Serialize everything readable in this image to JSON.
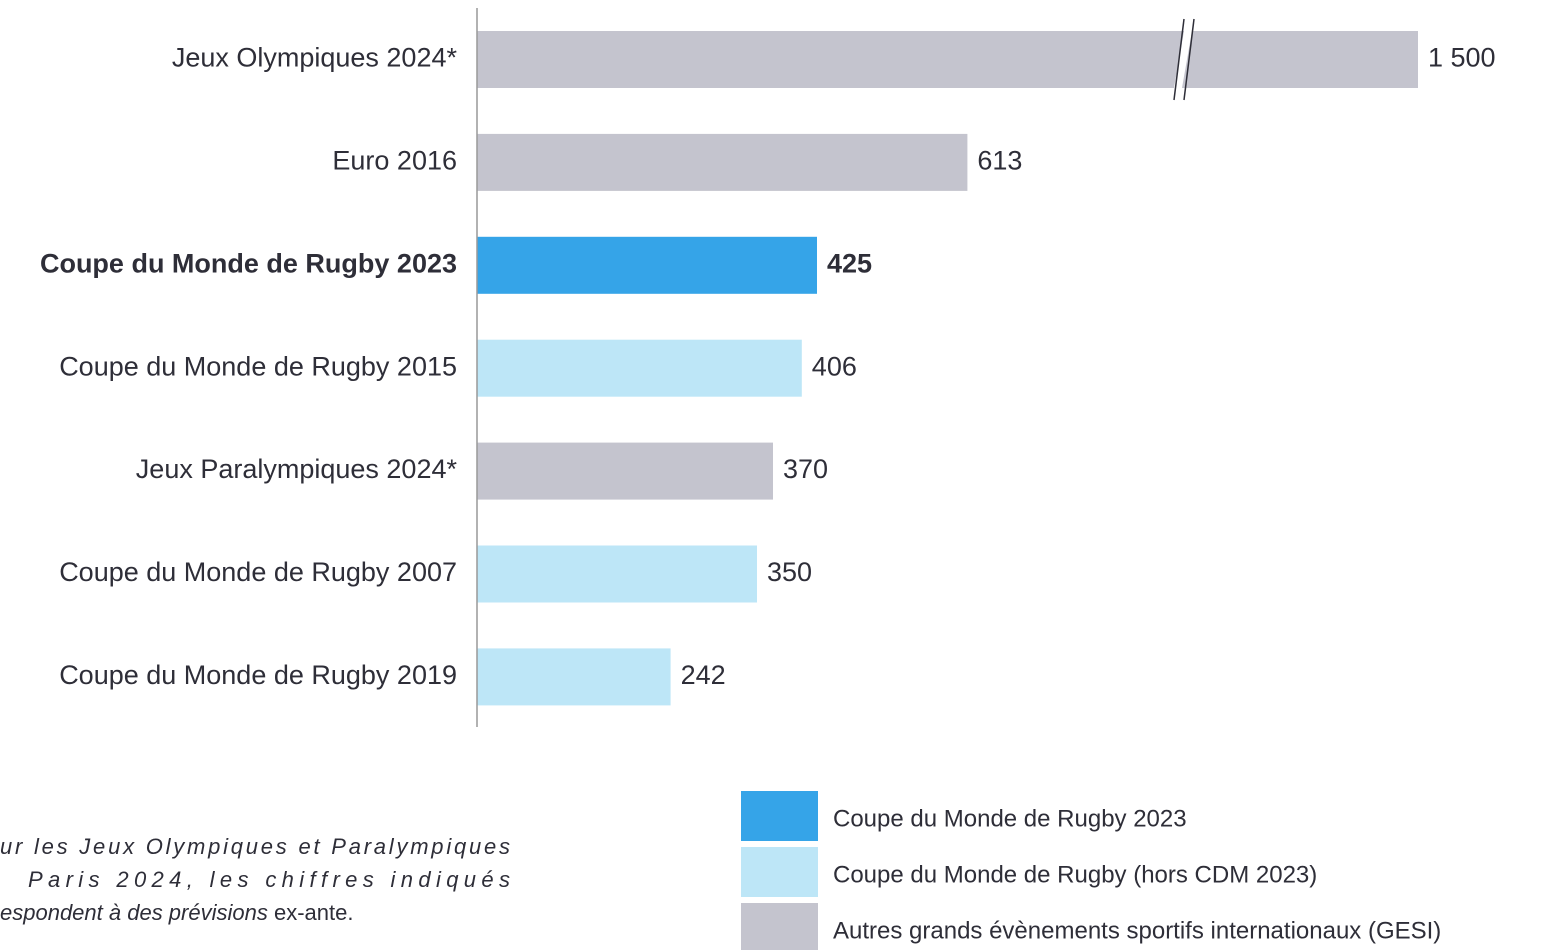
{
  "chart_data": {
    "type": "hbar",
    "categories": [
      "Jeux Olympiques 2024*",
      "Euro 2016",
      "Coupe du Monde de Rugby 2023",
      "Coupe du Monde de Rugby 2015",
      "Jeux Paralympiques 2024*",
      "Coupe du Monde de Rugby 2007",
      "Coupe du Monde de Rugby 2019"
    ],
    "values": [
      1500,
      613,
      425,
      406,
      370,
      350,
      242
    ],
    "value_labels": [
      "1 500",
      "613",
      "425",
      "406",
      "370",
      "350",
      "242"
    ],
    "colors": [
      "#c4c4ce",
      "#c4c4ce",
      "#35a4e8",
      "#bde6f7",
      "#c4c4ce",
      "#bde6f7",
      "#bde6f7"
    ],
    "highlight_index": 2,
    "axis_break": true,
    "legend": [
      {
        "name": "Coupe du Monde de Rugby 2023",
        "color": "#35a4e8"
      },
      {
        "name": "Coupe du Monde de Rugby (hors CDM 2023)",
        "color": "#bde6f7"
      },
      {
        "name": "Autres grands évènements sportifs internationaux (GESI)",
        "color": "#c4c4ce"
      }
    ],
    "footnote": {
      "lines": [
        "ur les Jeux Olympiques et Paralympiques",
        "Paris 2024, les chiffres indiqués"
      ],
      "last_italic": "espondent à des prévisions",
      "last_normal": "ex-ante."
    }
  }
}
